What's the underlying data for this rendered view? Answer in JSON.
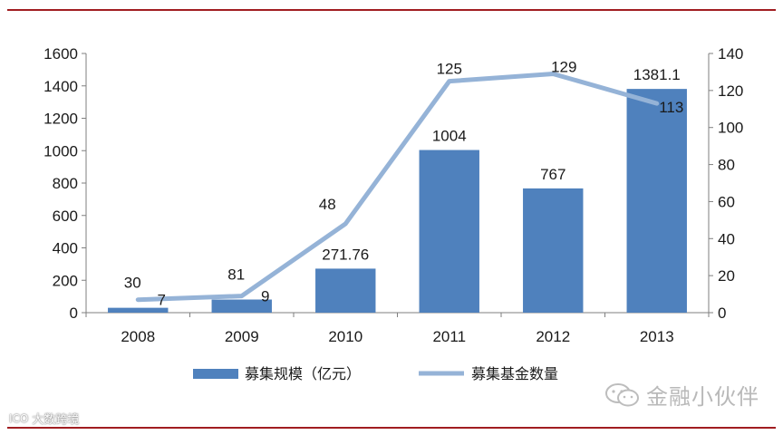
{
  "chart_data": {
    "type": "bar+line",
    "categories": [
      "2008",
      "2009",
      "2010",
      "2011",
      "2012",
      "2013"
    ],
    "series": [
      {
        "name": "募集规模（亿元）",
        "type": "bar",
        "axis": "left",
        "values": [
          30,
          81,
          271.76,
          1004,
          767,
          1381.1
        ],
        "labels": [
          "30",
          "81",
          "271.76",
          "1004",
          "767",
          "1381.1"
        ]
      },
      {
        "name": "募集基金数量",
        "type": "line",
        "axis": "right",
        "values": [
          7,
          9,
          48,
          125,
          129,
          113
        ],
        "labels": [
          "7",
          "9",
          "48",
          "125",
          "129",
          "113"
        ]
      }
    ],
    "y_left": {
      "min": 0,
      "max": 1600,
      "step": 200,
      "ticks": [
        "0",
        "200",
        "400",
        "600",
        "800",
        "1000",
        "1200",
        "1400",
        "1600"
      ]
    },
    "y_right": {
      "min": 0,
      "max": 140,
      "step": 20,
      "ticks": [
        "0",
        "20",
        "40",
        "60",
        "80",
        "100",
        "120",
        "140"
      ]
    },
    "legend_position": "bottom",
    "grid": false,
    "colors": {
      "bar": "#4f81bd",
      "line": "#95b3d7",
      "frame": "#a11d21",
      "axis": "#7f7f7f"
    }
  },
  "watermarks": {
    "right": "金融小伙伴",
    "right_icon": "wechat-icon",
    "left": "大数跨境",
    "left_logo": "ICO"
  }
}
